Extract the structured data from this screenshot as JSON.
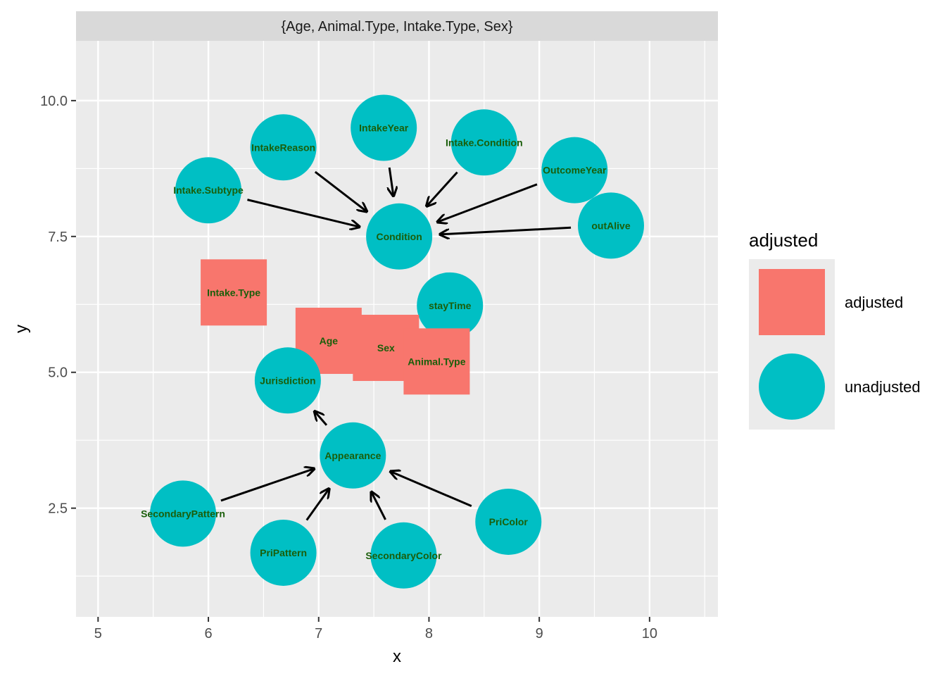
{
  "chart_data": {
    "type": "scatter",
    "title": "",
    "facet_label": "{Age, Animal.Type, Intake.Type, Sex}",
    "xlabel": "x",
    "ylabel": "y",
    "xlim": [
      4.8,
      10.62
    ],
    "ylim": [
      0.5,
      11.1
    ],
    "x_ticks": [
      5,
      6,
      7,
      8,
      9,
      10
    ],
    "y_ticks": [
      2.5,
      5.0,
      7.5,
      10.0
    ],
    "y_tick_labels": [
      "2.5",
      "5.0",
      "7.5",
      "10.0"
    ],
    "grid": true,
    "legend": {
      "title": "adjusted",
      "placement": "right",
      "entries": [
        {
          "label": "adjusted",
          "shape": "square",
          "color": "#F8766D"
        },
        {
          "label": "unadjusted",
          "shape": "circle",
          "color": "#00BFC4"
        }
      ]
    },
    "colors": {
      "adjusted": "#F8766D",
      "unadjusted": "#00BFC4",
      "label_text": "#1a5e0a",
      "panel_bg": "#ebebeb",
      "strip_bg": "#d9d9d9"
    },
    "nodes": [
      {
        "name": "IntakeYear",
        "x": 7.59,
        "y": 9.5,
        "status": "unadjusted"
      },
      {
        "name": "IntakeReason",
        "x": 6.68,
        "y": 9.14,
        "status": "unadjusted"
      },
      {
        "name": "Intake.Condition",
        "x": 8.5,
        "y": 9.23,
        "status": "unadjusted"
      },
      {
        "name": "OutcomeYear",
        "x": 9.32,
        "y": 8.72,
        "status": "unadjusted"
      },
      {
        "name": "Intake.Subtype",
        "x": 6.0,
        "y": 8.35,
        "status": "unadjusted"
      },
      {
        "name": "outAlive",
        "x": 9.65,
        "y": 7.7,
        "status": "unadjusted"
      },
      {
        "name": "Condition",
        "x": 7.73,
        "y": 7.5,
        "status": "unadjusted"
      },
      {
        "name": "Intake.Type",
        "x": 6.23,
        "y": 6.47,
        "status": "adjusted"
      },
      {
        "name": "stayTime",
        "x": 8.19,
        "y": 6.23,
        "status": "unadjusted"
      },
      {
        "name": "Age",
        "x": 7.09,
        "y": 5.58,
        "status": "adjusted"
      },
      {
        "name": "Sex",
        "x": 7.61,
        "y": 5.45,
        "status": "adjusted"
      },
      {
        "name": "Animal.Type",
        "x": 8.07,
        "y": 5.2,
        "status": "adjusted"
      },
      {
        "name": "Jurisdiction",
        "x": 6.72,
        "y": 4.85,
        "status": "unadjusted"
      },
      {
        "name": "Appearance",
        "x": 7.31,
        "y": 3.47,
        "status": "unadjusted"
      },
      {
        "name": "SecondaryPattern",
        "x": 5.77,
        "y": 2.4,
        "status": "unadjusted"
      },
      {
        "name": "PriColor",
        "x": 8.72,
        "y": 2.25,
        "status": "unadjusted"
      },
      {
        "name": "PriPattern",
        "x": 6.68,
        "y": 1.68,
        "status": "unadjusted"
      },
      {
        "name": "SecondaryColor",
        "x": 7.77,
        "y": 1.63,
        "status": "unadjusted"
      }
    ],
    "edges": [
      {
        "from": "IntakeYear",
        "to": "Condition"
      },
      {
        "from": "IntakeReason",
        "to": "Condition"
      },
      {
        "from": "Intake.Condition",
        "to": "Condition"
      },
      {
        "from": "OutcomeYear",
        "to": "Condition"
      },
      {
        "from": "Intake.Subtype",
        "to": "Condition"
      },
      {
        "from": "outAlive",
        "to": "Condition"
      },
      {
        "from": "Appearance",
        "to": "Jurisdiction"
      },
      {
        "from": "SecondaryPattern",
        "to": "Appearance"
      },
      {
        "from": "PriPattern",
        "to": "Appearance"
      },
      {
        "from": "SecondaryColor",
        "to": "Appearance"
      },
      {
        "from": "PriColor",
        "to": "Appearance"
      }
    ]
  }
}
